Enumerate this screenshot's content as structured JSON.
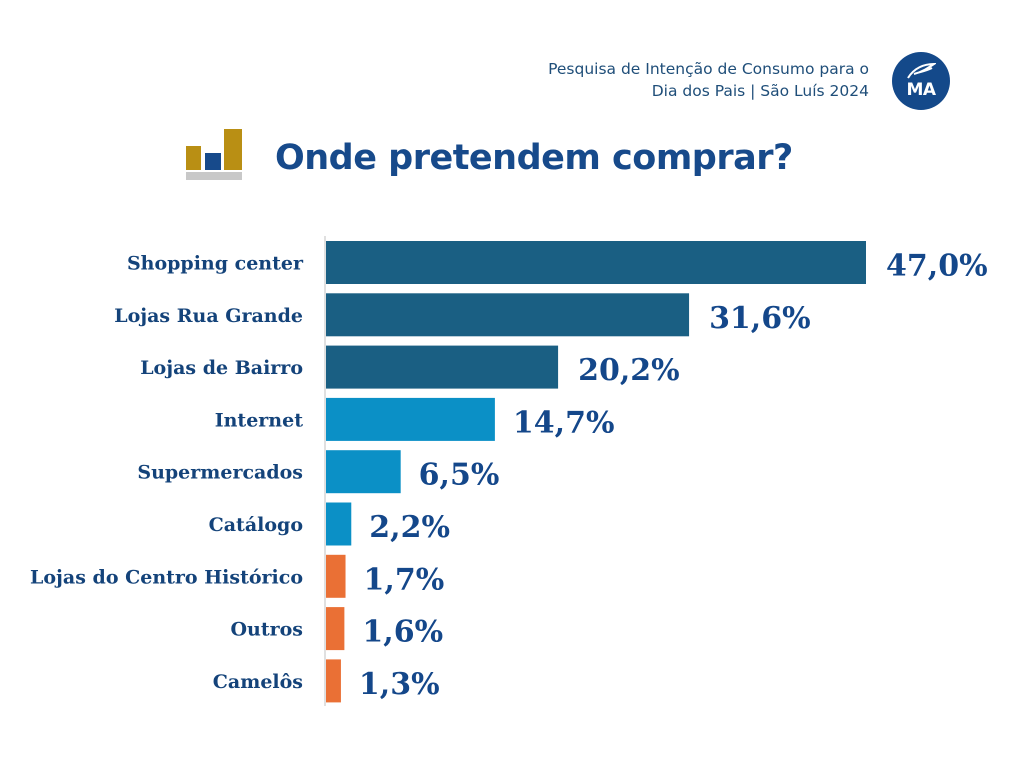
{
  "header": {
    "subtitle_line1": "Pesquisa de Intenção de Consumo para o",
    "subtitle_line2": "Dia dos Pais | São Luís 2024",
    "logo_text": "MA"
  },
  "colors": {
    "dark_blue": "#1a5f83",
    "light_blue": "#0b90c6",
    "orange": "#ea7035",
    "title_blue": "#174a8b",
    "logo_bg": "#14498a",
    "icon_gold": "#b98f14",
    "icon_grey": "#c8c8c8"
  },
  "chart_data": {
    "type": "bar",
    "orientation": "horizontal",
    "title": "Onde pretendem comprar?",
    "xlabel": "",
    "ylabel": "",
    "xlim": [
      0,
      47
    ],
    "grid": false,
    "legend": "none",
    "categories": [
      "Shopping center",
      "Lojas Rua Grande",
      "Lojas de Bairro",
      "Internet",
      "Supermercados",
      "Catálogo",
      "Lojas do Centro Histórico",
      "Outros",
      "Camelôs"
    ],
    "values": [
      47.0,
      31.6,
      20.2,
      14.7,
      6.5,
      2.2,
      1.7,
      1.6,
      1.3
    ],
    "value_labels": [
      "47,0%",
      "31,6%",
      "20,2%",
      "14,7%",
      "6,5%",
      "2,2%",
      "1,7%",
      "1,6%",
      "1,3%"
    ],
    "bar_color_groups": [
      "dark_blue",
      "dark_blue",
      "dark_blue",
      "light_blue",
      "light_blue",
      "light_blue",
      "orange",
      "orange",
      "orange"
    ]
  }
}
